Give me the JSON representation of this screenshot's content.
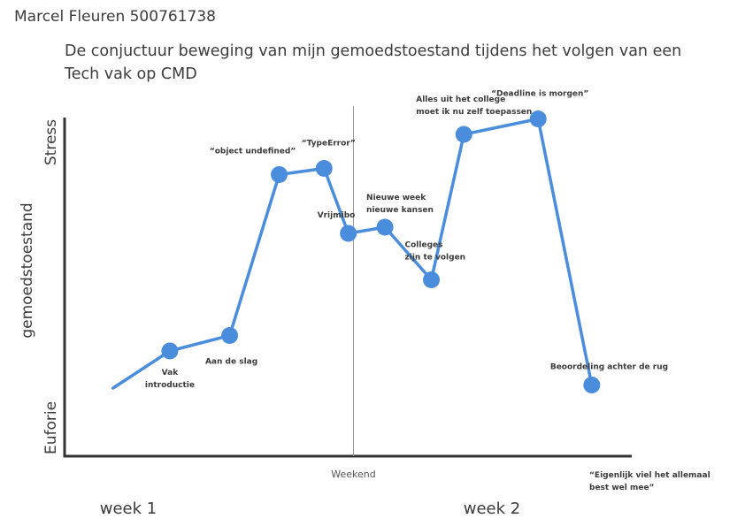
{
  "header": {
    "author": "Marcel Fleuren  500761738",
    "title": "De conjuctuur beweging van mijn gemoedstoestand tijdens het volgen van een Tech vak op CMD"
  },
  "colors": {
    "line": "#4a8ddc",
    "axis": "#333333",
    "divider": "#999999"
  },
  "chart_data": {
    "type": "line",
    "title": "De conjuctuur beweging van mijn gemoedstoestand tijdens het volgen van een Tech vak op CMD",
    "ylabel": "gemoedstoestand",
    "y_axis_labels": {
      "top": "Stress",
      "bottom": "Euforie"
    },
    "ylim": [
      0,
      100
    ],
    "xlim": [
      0,
      100
    ],
    "week_labels": [
      "week 1",
      "week 2"
    ],
    "divider_label": "Weekend",
    "divider_x": 51.2,
    "grid": false,
    "legend": "none",
    "footnote": [
      "“Eigenlijk viel het allemaal",
      "best wel mee”"
    ],
    "points": [
      {
        "x": 4.6,
        "y": 12,
        "label": [],
        "marker": false
      },
      {
        "x": 15.6,
        "y": 24,
        "label": [
          "Vak",
          "introductie"
        ],
        "marker": true
      },
      {
        "x": 27.2,
        "y": 29,
        "label": [
          "Aan de slag"
        ],
        "marker": true
      },
      {
        "x": 36.8,
        "y": 81,
        "label": [
          "“object undefined”"
        ],
        "marker": true
      },
      {
        "x": 45.5,
        "y": 83,
        "label": [
          "“TypeError”"
        ],
        "marker": true
      },
      {
        "x": 50.2,
        "y": 62,
        "label": [
          "Vrijmibo"
        ],
        "marker": true
      },
      {
        "x": 57.3,
        "y": 64,
        "label": [
          "Nieuwe week",
          "nieuwe kansen"
        ],
        "marker": true
      },
      {
        "x": 66.3,
        "y": 47,
        "label": [
          "Colleges",
          "zijn te volgen"
        ],
        "marker": true
      },
      {
        "x": 72.6,
        "y": 94,
        "label": [
          "Alles uit het college",
          "moet ik nu zelf toepassen"
        ],
        "marker": true
      },
      {
        "x": 87.0,
        "y": 99,
        "label": [
          "“Deadline is morgen”"
        ],
        "marker": true
      },
      {
        "x": 97.4,
        "y": 13,
        "label": [
          "Beoordeling achter de rug"
        ],
        "marker": true
      }
    ]
  }
}
